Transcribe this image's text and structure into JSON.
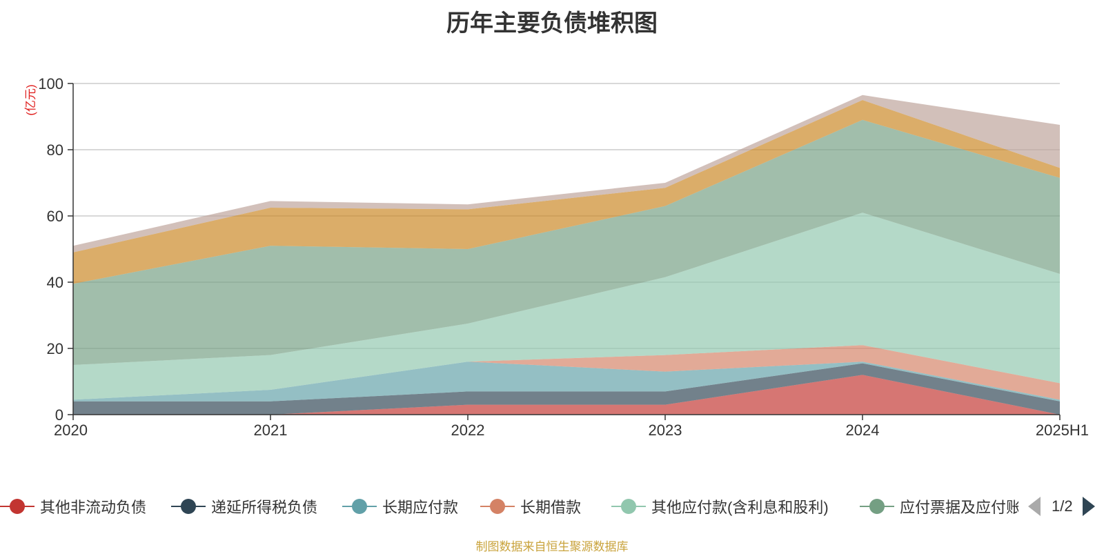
{
  "chart_data": {
    "type": "area",
    "stacked": true,
    "title": "历年主要负债堆积图",
    "unit_label": "(亿元)",
    "categories": [
      "2020",
      "2021",
      "2022",
      "2023",
      "2024",
      "2025H1"
    ],
    "ylim": [
      0,
      100
    ],
    "yticks": [
      0,
      20,
      40,
      60,
      80,
      100
    ],
    "grid": true,
    "series": [
      {
        "name": "其他非流动负债",
        "color": "#c23531",
        "values": [
          0,
          0,
          3,
          3,
          12,
          0
        ]
      },
      {
        "name": "递延所得税负债",
        "color": "#2f4554",
        "values": [
          4,
          4,
          4,
          4,
          3.5,
          4
        ]
      },
      {
        "name": "长期应付款",
        "color": "#61a0a8",
        "values": [
          0.5,
          3.5,
          9,
          6,
          0.5,
          0.5
        ]
      },
      {
        "name": "长期借款",
        "color": "#d48265",
        "values": [
          0,
          0,
          0,
          5,
          5,
          5
        ]
      },
      {
        "name": "其他应付款(含利息和股利)",
        "color": "#91c7ae",
        "values": [
          10.5,
          10.5,
          11.5,
          23.5,
          40,
          33
        ]
      },
      {
        "name": "应付票据及应付账款",
        "color": "#749f83",
        "values": [
          24.5,
          33,
          22.5,
          21.5,
          28,
          29
        ]
      },
      {
        "name": "",
        "color": "#ca8622",
        "values": [
          9.5,
          11.5,
          12,
          5.5,
          6,
          3
        ]
      },
      {
        "name": "",
        "color": "#bda29a",
        "values": [
          2,
          2,
          1.5,
          1.5,
          1.5,
          13
        ]
      }
    ],
    "legend": {
      "placement": "bottom",
      "page": "1/2"
    }
  },
  "footer": {
    "source_note": "制图数据来自恒生聚源数据库"
  }
}
